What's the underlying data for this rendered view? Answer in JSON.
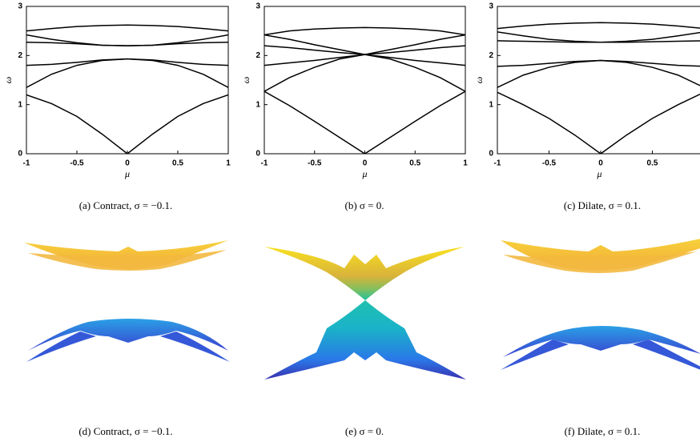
{
  "chart_data": [
    {
      "type": "line",
      "xlabel": "μ",
      "ylabel": "ω",
      "caption": "(a) Contract, σ = −0.1.",
      "x": [
        -1,
        -0.75,
        -0.5,
        -0.25,
        0,
        0.25,
        0.5,
        0.75,
        1
      ],
      "xlim": [
        -1,
        1
      ],
      "ylim": [
        0,
        3
      ],
      "xticks": [
        -1,
        -0.5,
        0,
        0.5,
        1
      ],
      "yticks": [
        0,
        1,
        2,
        3
      ],
      "series": [
        {
          "color": "#000000",
          "values": [
            1.2,
            1.02,
            0.76,
            0.4,
            0,
            0.4,
            0.76,
            1.02,
            1.2
          ]
        },
        {
          "color": "#000000",
          "values": [
            1.35,
            1.62,
            1.8,
            1.9,
            1.93,
            1.9,
            1.8,
            1.62,
            1.35
          ]
        },
        {
          "color": "#000000",
          "values": [
            1.8,
            1.82,
            1.86,
            1.91,
            1.93,
            1.91,
            1.86,
            1.82,
            1.8
          ]
        },
        {
          "color": "#000000",
          "values": [
            2.42,
            2.33,
            2.26,
            2.21,
            2.2,
            2.21,
            2.26,
            2.33,
            2.42
          ]
        },
        {
          "color": "#000000",
          "values": [
            2.27,
            2.26,
            2.24,
            2.21,
            2.2,
            2.21,
            2.24,
            2.26,
            2.27
          ]
        },
        {
          "color": "#000000",
          "values": [
            2.5,
            2.55,
            2.59,
            2.61,
            2.62,
            2.61,
            2.59,
            2.55,
            2.5
          ]
        }
      ]
    },
    {
      "type": "line",
      "xlabel": "μ",
      "ylabel": "ω",
      "caption": "(b) σ = 0.",
      "x": [
        -1,
        -0.75,
        -0.5,
        -0.25,
        0,
        0.25,
        0.5,
        0.75,
        1
      ],
      "xlim": [
        -1,
        1
      ],
      "ylim": [
        0,
        3
      ],
      "xticks": [
        -1,
        -0.5,
        0,
        0.5,
        1
      ],
      "yticks": [
        0,
        1,
        2,
        3
      ],
      "series": [
        {
          "color": "#000000",
          "values": [
            1.27,
            0.98,
            0.66,
            0.33,
            0,
            0.33,
            0.66,
            0.98,
            1.27
          ]
        },
        {
          "color": "#000000",
          "values": [
            1.27,
            1.55,
            1.76,
            1.93,
            2.02,
            1.93,
            1.76,
            1.55,
            1.27
          ]
        },
        {
          "color": "#000000",
          "values": [
            1.8,
            1.85,
            1.9,
            1.96,
            2.02,
            1.96,
            1.9,
            1.85,
            1.8
          ]
        },
        {
          "color": "#000000",
          "values": [
            2.2,
            2.16,
            2.11,
            2.06,
            2.02,
            2.06,
            2.11,
            2.16,
            2.2
          ]
        },
        {
          "color": "#000000",
          "values": [
            2.42,
            2.33,
            2.22,
            2.12,
            2.02,
            2.12,
            2.22,
            2.33,
            2.42
          ]
        },
        {
          "color": "#000000",
          "values": [
            2.42,
            2.5,
            2.54,
            2.56,
            2.57,
            2.56,
            2.54,
            2.5,
            2.42
          ]
        }
      ]
    },
    {
      "type": "line",
      "xlabel": "μ",
      "ylabel": "ω",
      "caption": "(c) Dilate, σ = 0.1.",
      "x": [
        -1,
        -0.75,
        -0.5,
        -0.25,
        0,
        0.25,
        0.5,
        0.75,
        1
      ],
      "xlim": [
        -1,
        1
      ],
      "ylim": [
        0,
        3
      ],
      "xticks": [
        -1,
        -0.5,
        0,
        0.5
      ],
      "yticks": [
        0,
        1,
        2,
        3
      ],
      "series": [
        {
          "color": "#000000",
          "values": [
            1.25,
            1.0,
            0.72,
            0.38,
            0,
            0.38,
            0.72,
            1.0,
            1.25
          ]
        },
        {
          "color": "#000000",
          "values": [
            1.35,
            1.6,
            1.76,
            1.86,
            1.9,
            1.86,
            1.76,
            1.6,
            1.35
          ]
        },
        {
          "color": "#000000",
          "values": [
            1.78,
            1.8,
            1.84,
            1.88,
            1.9,
            1.88,
            1.84,
            1.8,
            1.78
          ]
        },
        {
          "color": "#000000",
          "values": [
            2.3,
            2.29,
            2.28,
            2.27,
            2.27,
            2.27,
            2.28,
            2.29,
            2.3
          ]
        },
        {
          "color": "#000000",
          "values": [
            2.48,
            2.4,
            2.33,
            2.29,
            2.27,
            2.29,
            2.33,
            2.4,
            2.48
          ]
        },
        {
          "color": "#000000",
          "values": [
            2.55,
            2.6,
            2.64,
            2.66,
            2.67,
            2.66,
            2.64,
            2.6,
            2.55
          ]
        }
      ]
    }
  ],
  "surfaces": [
    {
      "caption": "(d) Contract, σ = −0.1."
    },
    {
      "caption": "(e) σ = 0."
    },
    {
      "caption": "(f) Dilate, σ = 0.1."
    }
  ]
}
